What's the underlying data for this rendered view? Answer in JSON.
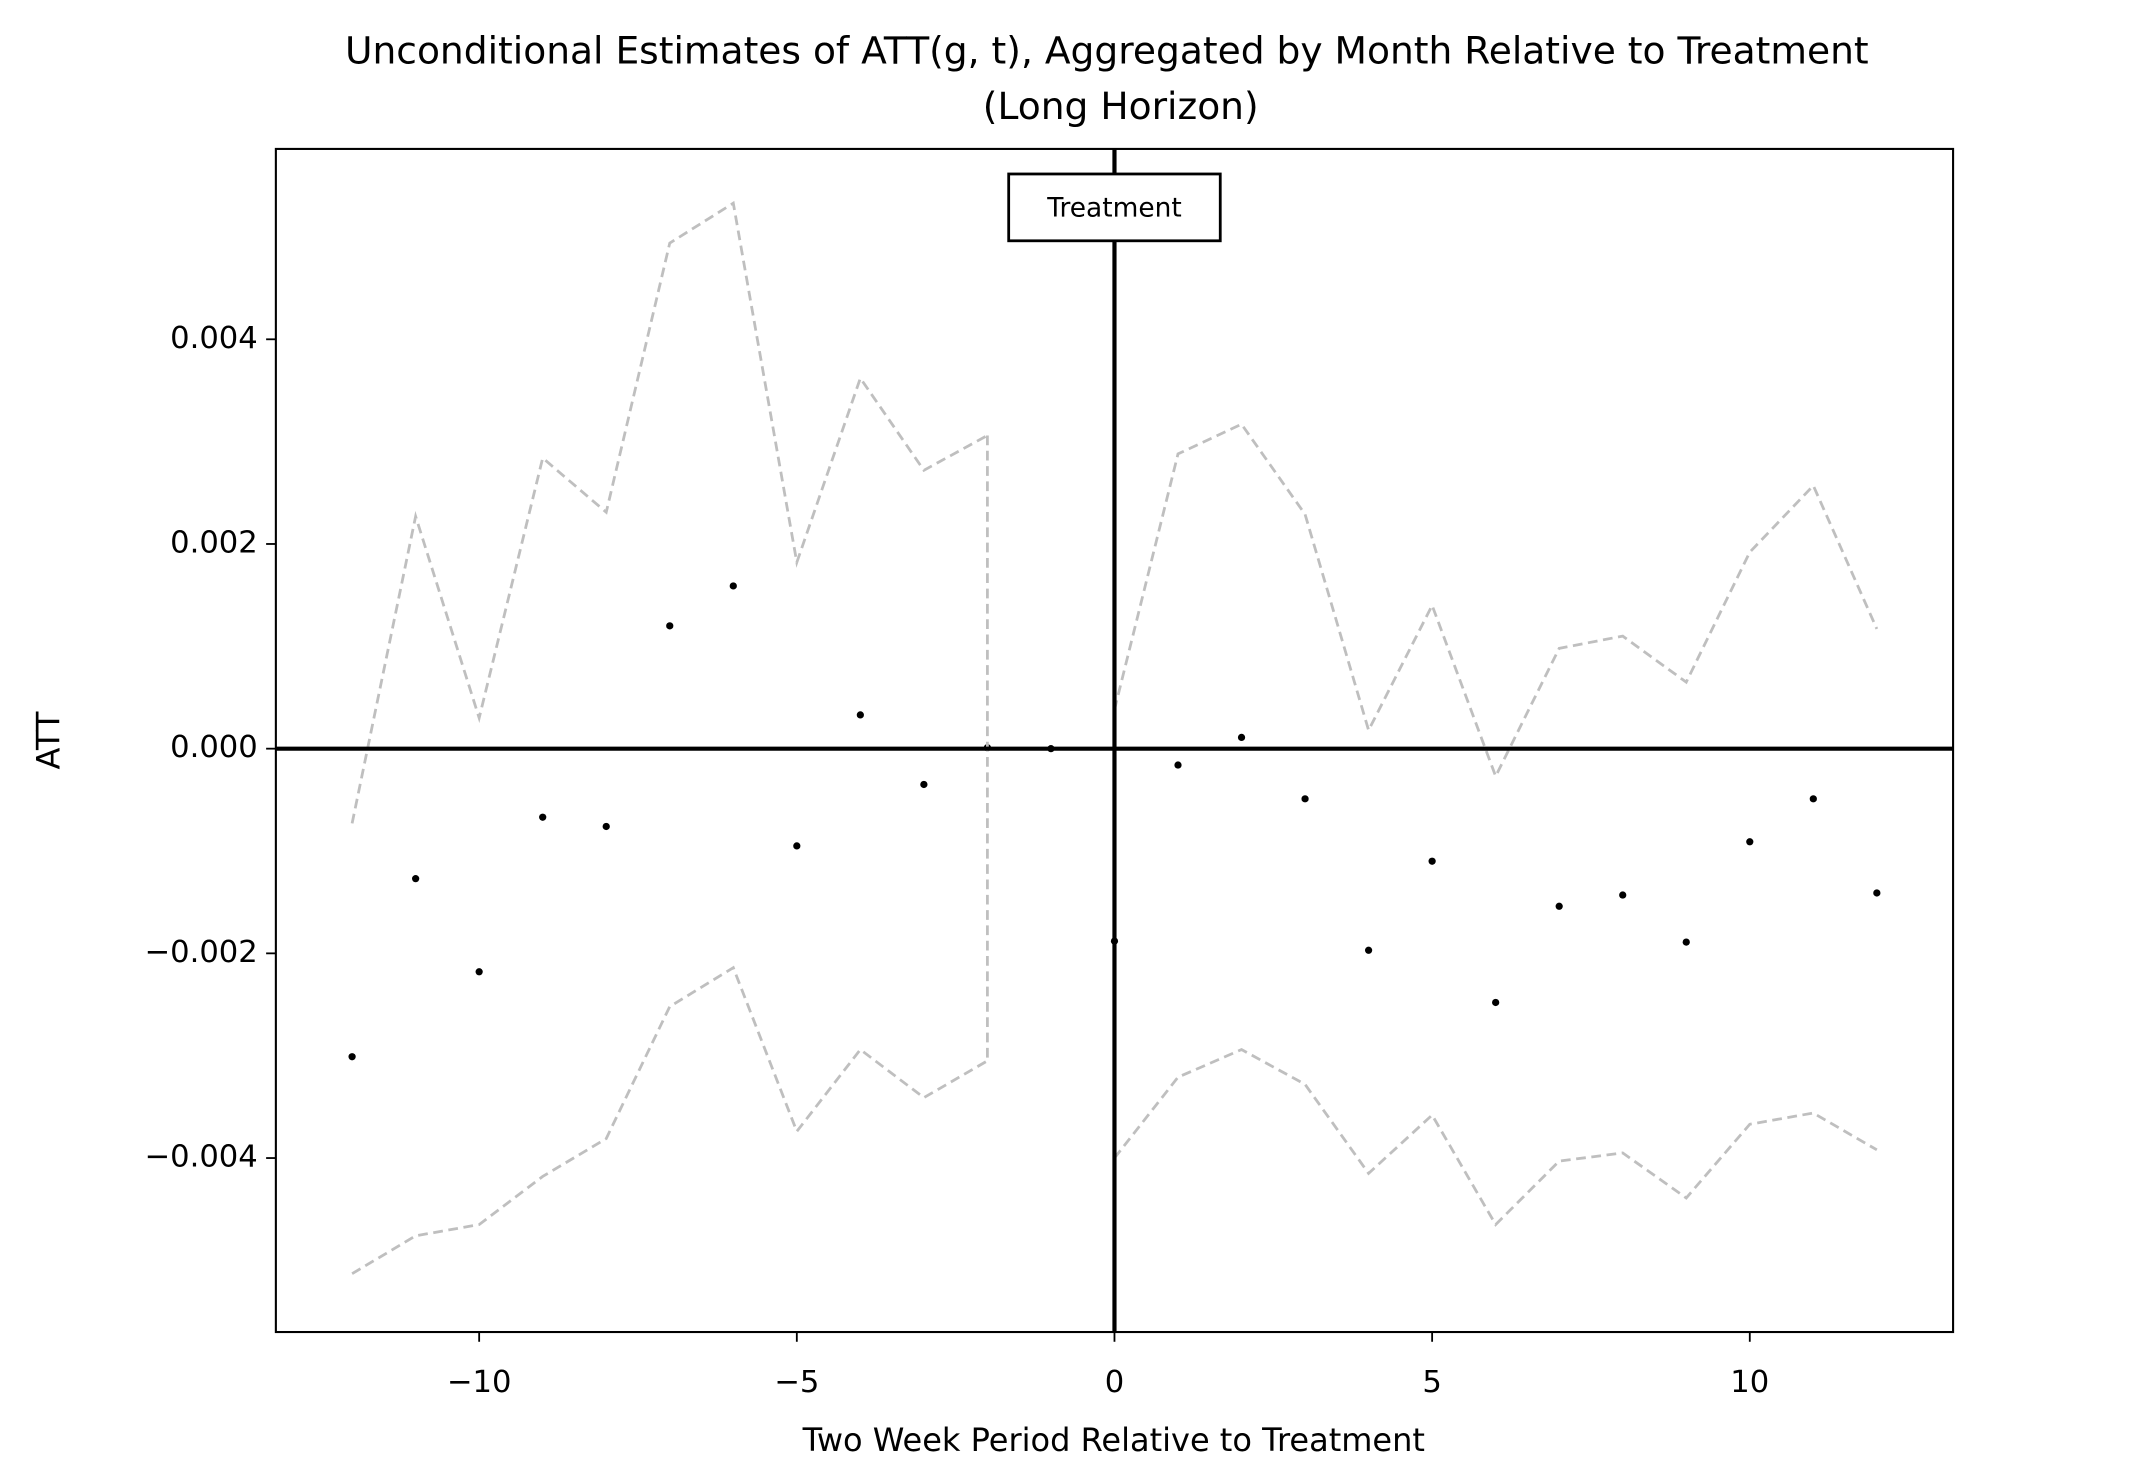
{
  "chart_data": {
    "type": "scatter",
    "title": [
      "Unconditional Estimates of ATT(g, t), Aggregated by Month Relative to Treatment",
      "(Long Horizon)"
    ],
    "x_label": "Two Week Period Relative to Treatment",
    "y_label": "ATT",
    "annotation": "Treatment",
    "reference_lines": {
      "x": 0,
      "y": 0
    },
    "x": [
      -12,
      -11,
      -10,
      -9,
      -8,
      -7,
      -6,
      -5,
      -4,
      -3,
      -2,
      -1,
      0,
      1,
      2,
      3,
      4,
      5,
      6,
      7,
      8,
      9,
      10,
      11,
      12
    ],
    "series": [
      {
        "name": "ATT",
        "color": "#000000",
        "values": [
          -0.00301,
          -0.00127,
          -0.00218,
          -0.00067,
          -0.00076,
          0.0012,
          0.00159,
          -0.00095,
          0.00033,
          -0.00035,
          1e-05,
          0.0,
          -0.00188,
          -0.00016,
          0.00011,
          -0.00049,
          -0.00197,
          -0.0011,
          -0.00248,
          -0.00154,
          -0.00143,
          -0.00189,
          -0.00091,
          -0.00049,
          -0.00141
        ]
      },
      {
        "name": "Upper",
        "color": "#bfbfbf",
        "values": [
          -0.00073,
          0.00227,
          0.0003,
          0.00284,
          0.00231,
          0.00494,
          0.00533,
          0.00182,
          0.00362,
          0.00272,
          0.00306,
          null,
          0.00038,
          0.00288,
          0.00317,
          0.00229,
          0.00018,
          0.0014,
          -0.00027,
          0.00098,
          0.0011,
          0.00065,
          0.00192,
          0.00257,
          0.00117
        ]
      },
      {
        "name": "Lower",
        "color": "#bfbfbf",
        "values": [
          -0.00513,
          -0.00476,
          -0.00465,
          -0.00418,
          -0.00381,
          -0.00252,
          -0.00214,
          -0.00374,
          -0.00294,
          -0.00341,
          -0.00305,
          null,
          -0.004,
          -0.00321,
          -0.00294,
          -0.00328,
          -0.00415,
          -0.00358,
          -0.00465,
          -0.00403,
          -0.00395,
          -0.00439,
          -0.00367,
          -0.00356,
          -0.00392
        ]
      }
    ],
    "xlim": [
      -13.2,
      13.2
    ],
    "ylim": [
      -0.0057,
      0.00586
    ],
    "xticks": [
      {
        "value": -10,
        "label": "−10"
      },
      {
        "value": -5,
        "label": "−5"
      },
      0,
      5,
      10
    ],
    "yticks": [
      {
        "value": -0.004,
        "label": "−0.004"
      },
      {
        "value": -0.002,
        "label": "−0.002"
      },
      {
        "value": 0,
        "label": "0.000"
      },
      0.002,
      0.004
    ]
  }
}
